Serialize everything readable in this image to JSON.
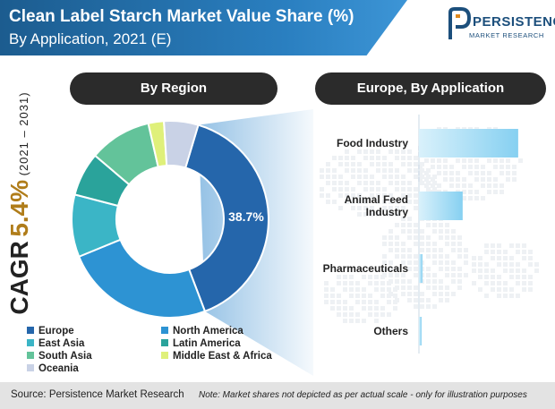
{
  "header": {
    "title": "Clean Label Starch Market Value Share (%)",
    "subtitle": "By Application, 2021 (E)"
  },
  "logo": {
    "name": "PERSISTENCE",
    "tagline": "MARKET RESEARCH"
  },
  "cagr": {
    "label": "CAGR",
    "value": "5.4%",
    "period": "(2021 – 2031)"
  },
  "footer": {
    "source": "Source: Persistence Market Research",
    "note": "Note: Market shares not depicted as per actual scale - only for illustration purposes"
  },
  "colors": {
    "background": "#ffffff",
    "title_banner": "#1c5c8f",
    "cagr_value": "#b07d1a",
    "pill": "#2b2b2b",
    "footer": "#e3e3e3"
  },
  "chart_data": [
    {
      "type": "pie",
      "title": "By Region",
      "style": "donut",
      "labels": [
        "Europe",
        "North America",
        "East Asia",
        "South Asia",
        "Latin America",
        "Oceania",
        "Middle East & Africa"
      ],
      "values": [
        38.7,
        24.0,
        10.0,
        10.0,
        7.0,
        5.5,
        2.5
      ],
      "slice_order": [
        "Europe",
        "North America",
        "East Asia",
        "Latin America",
        "South Asia",
        "Middle East & Africa",
        "Oceania"
      ],
      "colors": {
        "Europe": "#2566ab",
        "North America": "#2d93d3",
        "East Asia": "#3bb5c6",
        "Latin America": "#2aa39b",
        "South Asia": "#63c39a",
        "Middle East & Africa": "#dff07a",
        "Oceania": "#c9d2e6"
      },
      "data_labels": [
        {
          "slice": "Europe",
          "text": "38.7%"
        }
      ],
      "legend": {
        "placement": "bottom-left",
        "entries": [
          "Europe",
          "North America",
          "East Asia",
          "Latin America",
          "South Asia",
          "Middle East & Africa",
          "Oceania"
        ]
      }
    },
    {
      "type": "bar",
      "orientation": "horizontal",
      "title": "Europe, By Application",
      "categories": [
        "Food Industry",
        "Animal Feed Industry",
        "Pharmaceuticals",
        "Others"
      ],
      "category_lines": [
        [
          "Food Industry"
        ],
        [
          "Animal Feed",
          "Industry"
        ],
        [
          "Pharmaceuticals"
        ],
        [
          "Others"
        ]
      ],
      "values": [
        84,
        37,
        3,
        2
      ],
      "xlim": [
        0,
        100
      ],
      "grid": false,
      "bar_color": "#9fd9f3"
    }
  ]
}
